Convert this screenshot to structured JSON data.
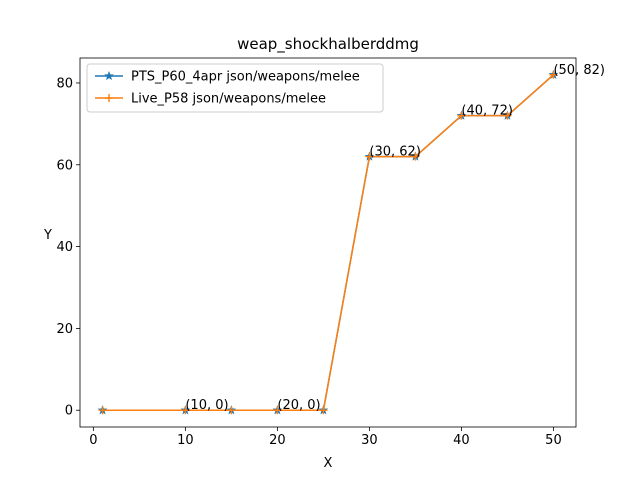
{
  "chart_data": {
    "type": "line",
    "title": "weap_shockhalberddmg",
    "xlabel": "X",
    "ylabel": "Y",
    "xlim": [
      -1.45,
      52.45
    ],
    "ylim": [
      -4.1,
      86.1
    ],
    "xticks": [
      0,
      10,
      20,
      30,
      40,
      50
    ],
    "yticks": [
      0,
      20,
      40,
      60,
      80
    ],
    "grid": false,
    "legend_position": "upper-left",
    "x": [
      1,
      10,
      15,
      20,
      25,
      30,
      35,
      40,
      45,
      50
    ],
    "series": [
      {
        "name": "PTS_P60_4apr json/weapons/melee",
        "color": "#1f77b4",
        "marker": "star",
        "values": [
          0,
          0,
          0,
          0,
          0,
          62,
          62,
          72,
          72,
          82
        ]
      },
      {
        "name": "Live_P58 json/weapons/melee",
        "color": "#ff7f0e",
        "marker": "plus",
        "values": [
          0,
          0,
          0,
          0,
          0,
          62,
          62,
          72,
          72,
          82
        ]
      }
    ],
    "annotations": [
      {
        "text": "(10, 0)",
        "x": 10,
        "y": 0
      },
      {
        "text": "(20, 0)",
        "x": 20,
        "y": 0
      },
      {
        "text": "(30, 62)",
        "x": 30,
        "y": 62
      },
      {
        "text": "(40, 72)",
        "x": 40,
        "y": 72
      },
      {
        "text": "(50, 82)",
        "x": 50,
        "y": 82
      }
    ]
  }
}
